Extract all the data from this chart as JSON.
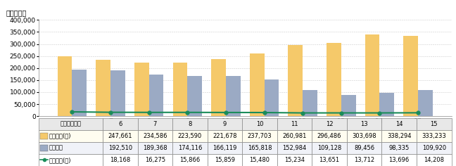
{
  "years": [
    6,
    7,
    8,
    9,
    10,
    11,
    12,
    13,
    14,
    15
  ],
  "ninchi": [
    247661,
    234586,
    223590,
    221678,
    237703,
    260981,
    296486,
    303698,
    338294,
    333233
  ],
  "kenkyo_ken": [
    192510,
    189368,
    174116,
    166119,
    165818,
    152984,
    109128,
    89456,
    98335,
    109920
  ],
  "kenkyo_nin": [
    18168,
    16275,
    15866,
    15859,
    15480,
    15234,
    13651,
    13712,
    13696,
    14208
  ],
  "bar_color_ninchi": "#F5C96A",
  "bar_color_kenkyo": "#9BAAC4",
  "line_color": "#1A8C5A",
  "ylim": [
    0,
    400000
  ],
  "yticks": [
    0,
    50000,
    100000,
    150000,
    200000,
    250000,
    300000,
    350000,
    400000
  ],
  "ylabel": "（件、人）",
  "legend_labels": [
    "認知件数（件）",
    "検挙件数（件）",
    "検挙人員（人）"
  ],
  "xlabel": "年次",
  "header_label": "区分　　年次",
  "table_row1_label": "認知件数(件)",
  "table_row2_label": "検挙件数",
  "table_row3_label": "検挙人員(人)",
  "bg_color": "#FFFFFF",
  "grid_color": "#CCCCCC",
  "table_header_bg": "#E8E8E8",
  "table_row1_bg": "#FFFDF0",
  "table_row2_bg": "#F0F2F8",
  "table_row3_bg": "#FFFFFF"
}
